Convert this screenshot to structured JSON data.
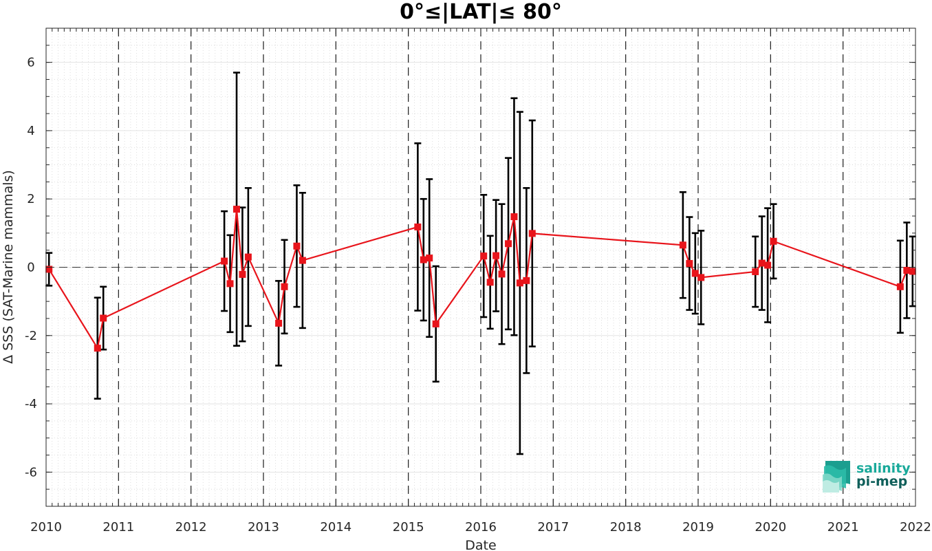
{
  "chart_data": {
    "type": "line",
    "title": "0°≤|LAT|≤ 80°",
    "xlabel": "Date",
    "ylabel": "Δ SSS (SAT-Marine mammals)",
    "xlim": [
      2010.0,
      2022.0
    ],
    "ylim": [
      -7,
      7
    ],
    "x_ticks": [
      2010,
      2011,
      2012,
      2013,
      2014,
      2015,
      2016,
      2017,
      2018,
      2019,
      2020,
      2021,
      2022
    ],
    "y_ticks": [
      -6,
      -4,
      -2,
      0,
      2,
      4,
      6
    ],
    "grid": true,
    "year_dividers": "dashed vertical lines at each year",
    "zero_line": "dashed horizontal line at 0",
    "series": [
      {
        "color": "#e8141b",
        "marker": "square",
        "points": [
          {
            "x": 2010.04,
            "y": -0.06,
            "err": 0.48
          },
          {
            "x": 2010.71,
            "y": -2.37,
            "err": 1.48
          },
          {
            "x": 2010.79,
            "y": -1.49,
            "err": 0.92
          },
          {
            "x": 2012.46,
            "y": 0.18,
            "err": 1.46
          },
          {
            "x": 2012.54,
            "y": -0.48,
            "err": 1.42
          },
          {
            "x": 2012.63,
            "y": 1.7,
            "err": 4.0
          },
          {
            "x": 2012.71,
            "y": -0.21,
            "err": 1.96
          },
          {
            "x": 2012.79,
            "y": 0.3,
            "err": 2.02
          },
          {
            "x": 2013.21,
            "y": -1.64,
            "err": 1.24
          },
          {
            "x": 2013.29,
            "y": -0.57,
            "err": 1.37
          },
          {
            "x": 2013.46,
            "y": 0.62,
            "err": 1.78
          },
          {
            "x": 2013.54,
            "y": 0.2,
            "err": 1.98
          },
          {
            "x": 2015.13,
            "y": 1.18,
            "err": 2.45
          },
          {
            "x": 2015.21,
            "y": 0.22,
            "err": 1.78
          },
          {
            "x": 2015.29,
            "y": 0.27,
            "err": 2.31
          },
          {
            "x": 2015.38,
            "y": -1.66,
            "err": 1.69
          },
          {
            "x": 2016.04,
            "y": 0.33,
            "err": 1.79
          },
          {
            "x": 2016.13,
            "y": -0.44,
            "err": 1.36
          },
          {
            "x": 2016.21,
            "y": 0.34,
            "err": 1.63
          },
          {
            "x": 2016.29,
            "y": -0.2,
            "err": 2.05
          },
          {
            "x": 2016.38,
            "y": 0.69,
            "err": 2.51
          },
          {
            "x": 2016.46,
            "y": 1.48,
            "err": 3.47
          },
          {
            "x": 2016.54,
            "y": -0.46,
            "err": 5.01
          },
          {
            "x": 2016.63,
            "y": -0.39,
            "err": 2.71
          },
          {
            "x": 2016.71,
            "y": 0.99,
            "err": 3.31
          },
          {
            "x": 2018.79,
            "y": 0.65,
            "err": 1.55
          },
          {
            "x": 2018.88,
            "y": 0.11,
            "err": 1.36
          },
          {
            "x": 2018.96,
            "y": -0.18,
            "err": 1.18
          },
          {
            "x": 2019.04,
            "y": -0.3,
            "err": 1.37
          },
          {
            "x": 2019.79,
            "y": -0.13,
            "err": 1.03
          },
          {
            "x": 2019.88,
            "y": 0.12,
            "err": 1.37
          },
          {
            "x": 2019.96,
            "y": 0.06,
            "err": 1.67
          },
          {
            "x": 2020.04,
            "y": 0.76,
            "err": 1.09
          },
          {
            "x": 2021.79,
            "y": -0.57,
            "err": 1.35
          },
          {
            "x": 2021.88,
            "y": -0.09,
            "err": 1.4
          },
          {
            "x": 2021.96,
            "y": -0.12,
            "err": 1.02
          }
        ]
      }
    ],
    "errorbar_color": "#000000",
    "line_color": "#e8141b"
  },
  "logo": {
    "line1": "salinity",
    "line2": "pi-mep",
    "color_top": "#19a99a",
    "color_bottom": "#0f5f5a"
  }
}
